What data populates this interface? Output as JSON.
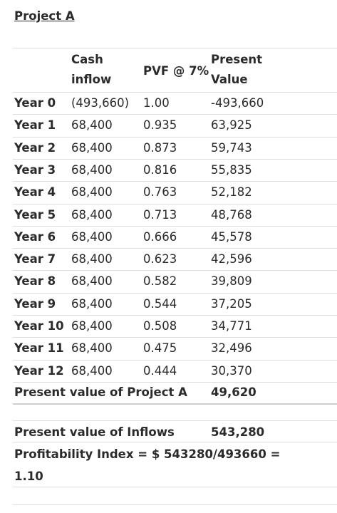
{
  "title": "Project A",
  "headers": {
    "cash_inflow": "Cash inflow",
    "pvf": "PVF @ 7%",
    "present_value": "Present Value"
  },
  "rows": [
    {
      "year": "Year 0",
      "cash": "(493,660)",
      "pvf": "1.00",
      "pv": "-493,660"
    },
    {
      "year": "Year 1",
      "cash": "68,400",
      "pvf": "0.935",
      "pv": "63,925"
    },
    {
      "year": "Year 2",
      "cash": "68,400",
      "pvf": "0.873",
      "pv": "59,743"
    },
    {
      "year": "Year 3",
      "cash": "68,400",
      "pvf": "0.816",
      "pv": "55,835"
    },
    {
      "year": "Year 4",
      "cash": "68,400",
      "pvf": "0.763",
      "pv": "52,182"
    },
    {
      "year": "Year 5",
      "cash": "68,400",
      "pvf": "0.713",
      "pv": "48,768"
    },
    {
      "year": "Year 6",
      "cash": "68,400",
      "pvf": "0.666",
      "pv": "45,578"
    },
    {
      "year": "Year 7",
      "cash": "68,400",
      "pvf": "0.623",
      "pv": "42,596"
    },
    {
      "year": "Year 8",
      "cash": "68,400",
      "pvf": "0.582",
      "pv": "39,809"
    },
    {
      "year": "Year 9",
      "cash": "68,400",
      "pvf": "0.544",
      "pv": "37,205"
    },
    {
      "year": "Year 10",
      "cash": "68,400",
      "pvf": "0.508",
      "pv": "34,771"
    },
    {
      "year": "Year 11",
      "cash": "68,400",
      "pvf": "0.475",
      "pv": "32,496"
    },
    {
      "year": "Year 12",
      "cash": "68,400",
      "pvf": "0.444",
      "pv": "30,370"
    }
  ],
  "summary": {
    "pv_label": "Present value of Project A",
    "pv_value": "49,620",
    "inflows_label": "Present value of Inflows",
    "inflows_value": "543,280",
    "pi_text": "Profitability Index = $ 543280/493660 = 1.10"
  }
}
